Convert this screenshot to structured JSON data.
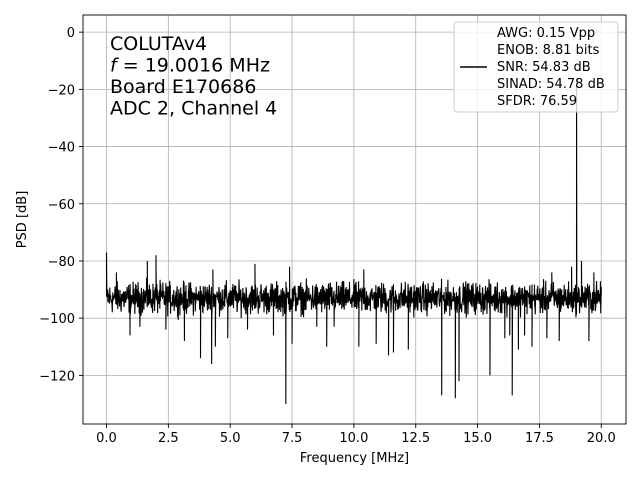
{
  "chart_data": {
    "type": "line",
    "xlabel": "Frequency [MHz]",
    "ylabel": "PSD [dB]",
    "xlim": [
      -0.95,
      21.0
    ],
    "ylim": [
      -137,
      6
    ],
    "xticks": [
      0.0,
      2.5,
      5.0,
      7.5,
      10.0,
      12.5,
      15.0,
      17.5,
      20.0
    ],
    "xtick_labels": [
      "0.0",
      "2.5",
      "5.0",
      "7.5",
      "10.0",
      "12.5",
      "15.0",
      "17.5",
      "20.0"
    ],
    "yticks": [
      0,
      -20,
      -40,
      -60,
      -80,
      -100,
      -120
    ],
    "ytick_labels": [
      "0",
      "−20",
      "−40",
      "−60",
      "−80",
      "−100",
      "−120"
    ],
    "grid": true,
    "legend_position": "top-right",
    "annotations": [
      {
        "parts": [
          {
            "text": "COLUTAv4"
          }
        ]
      },
      {
        "parts": [
          {
            "text": "f",
            "italic": true
          },
          {
            "text": " = 19.0016 MHz"
          }
        ]
      },
      {
        "parts": [
          {
            "text": "Board E170686"
          }
        ]
      },
      {
        "parts": [
          {
            "text": "ADC 2, Channel 4"
          }
        ]
      }
    ],
    "legend": [
      {
        "text": "AWG: 0.15 Vpp",
        "line": false
      },
      {
        "text": "ENOB: 8.81 bits",
        "line": false
      },
      {
        "text": "SNR: 54.83 dB",
        "line": true
      },
      {
        "text": "SINAD: 54.78 dB",
        "line": false
      },
      {
        "text": "SFDR: 76.59",
        "line": false
      }
    ],
    "series": [
      {
        "color": "#000000",
        "noise_floor": {
          "x_range": [
            0.0,
            20.0
          ],
          "level": -92,
          "band": [
            -101,
            -85
          ]
        },
        "x": [
          0.0,
          0.05,
          0.4,
          0.95,
          1.35,
          1.65,
          2.0,
          2.4,
          3.15,
          3.8,
          4.25,
          4.3,
          4.4,
          4.9,
          5.7,
          6.0,
          6.75,
          7.0,
          7.25,
          7.4,
          7.5,
          8.5,
          8.9,
          9.2,
          10.2,
          10.4,
          10.9,
          11.4,
          11.6,
          12.2,
          13.55,
          14.1,
          14.25,
          15.5,
          16.1,
          16.3,
          16.4,
          16.65,
          16.9,
          17.2,
          17.8,
          18.0,
          18.3,
          18.8,
          19.0016,
          19.2,
          19.5,
          19.7,
          20.0
        ],
        "y": [
          -77,
          -90,
          -84,
          -106,
          -103,
          -80,
          -78,
          -104,
          -108,
          -114,
          -116,
          -83,
          -110,
          -107,
          -104,
          -81,
          -106,
          -92,
          -130,
          -82,
          -109,
          -103,
          -110,
          -103,
          -110,
          -83,
          -109,
          -113,
          -112,
          -111,
          -127,
          -128,
          -122,
          -120,
          -107,
          -106,
          -127,
          -111,
          -106,
          -110,
          -107,
          -84,
          -108,
          -82,
          -16,
          -80,
          -108,
          -84,
          -89
        ]
      }
    ]
  }
}
